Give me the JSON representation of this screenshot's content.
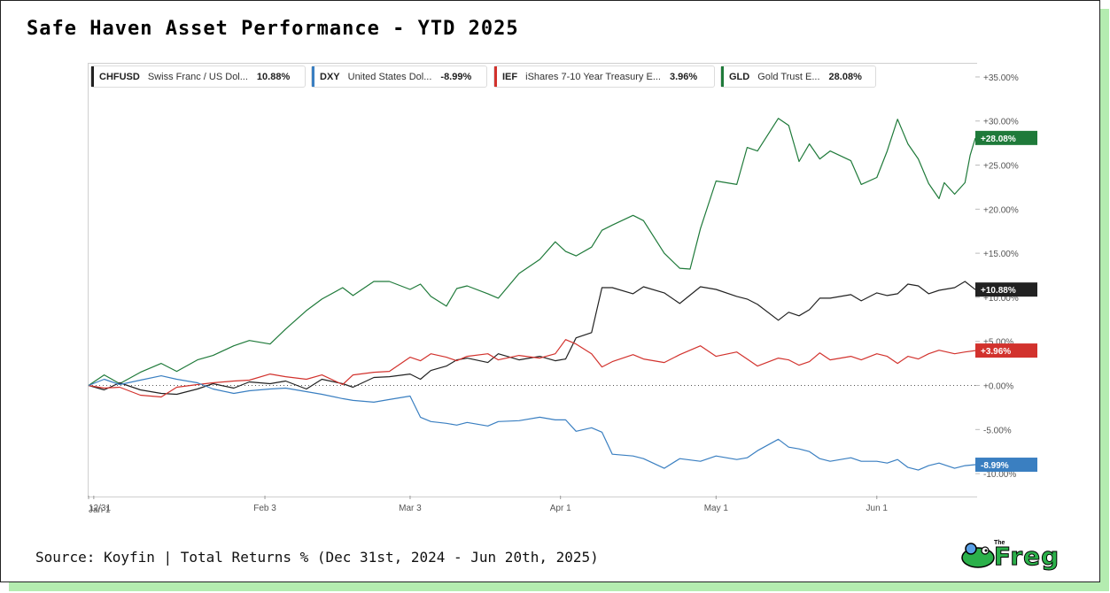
{
  "title": "Safe Haven Asset Performance - YTD 2025",
  "source": "Source: Koyfin | Total Returns % (Dec 31st, 2024 - Jun 20th, 2025)",
  "logo": {
    "small": "The",
    "word": "Freg"
  },
  "legend": [
    {
      "ticker": "CHFUSD",
      "name": "Swiss Franc / US Dol...",
      "value": "10.88%",
      "color": "#222222"
    },
    {
      "ticker": "DXY",
      "name": "United States Dol...",
      "value": "-8.99%",
      "color": "#3a7fc1"
    },
    {
      "ticker": "IEF",
      "name": "iShares 7-10 Year Treasury E...",
      "value": "3.96%",
      "color": "#d2322d"
    },
    {
      "ticker": "GLD",
      "name": "Gold Trust E...",
      "value": "28.08%",
      "color": "#1f7a3a"
    }
  ],
  "chart_data": {
    "type": "line",
    "x_start": "Dec 31, 2024",
    "x_end": "Jun 20, 2025",
    "x_ticks": [
      "12/31",
      "Jan 1",
      "Feb 3",
      "Mar 3",
      "Apr 1",
      "May 1",
      "Jun 1"
    ],
    "y_ticks": [
      "+35.00%",
      "+30.00%",
      "+25.00%",
      "+20.00%",
      "+15.00%",
      "+10.00%",
      "+5.00%",
      "+0.00%",
      "-5.00%",
      "-10.00%"
    ],
    "ylim": [
      -12.5,
      36.5
    ],
    "zero_line": true,
    "end_labels": [
      "+28.08%",
      "+10.88%",
      "+3.96%",
      "-8.99%"
    ],
    "series": [
      {
        "name": "GLD",
        "color": "#1f7a3a",
        "points": [
          [
            "2024-12-31",
            0
          ],
          [
            "2025-01-03",
            1.2
          ],
          [
            "2025-01-06",
            0.2
          ],
          [
            "2025-01-10",
            1.5
          ],
          [
            "2025-01-14",
            2.5
          ],
          [
            "2025-01-17",
            1.6
          ],
          [
            "2025-01-21",
            2.9
          ],
          [
            "2025-01-24",
            3.4
          ],
          [
            "2025-01-28",
            4.5
          ],
          [
            "2025-01-31",
            5.1
          ],
          [
            "2025-02-04",
            4.7
          ],
          [
            "2025-02-07",
            6.4
          ],
          [
            "2025-02-11",
            8.5
          ],
          [
            "2025-02-14",
            9.8
          ],
          [
            "2025-02-18",
            11.1
          ],
          [
            "2025-02-20",
            10.2
          ],
          [
            "2025-02-24",
            11.8
          ],
          [
            "2025-02-27",
            11.8
          ],
          [
            "2025-03-03",
            10.9
          ],
          [
            "2025-03-05",
            11.5
          ],
          [
            "2025-03-07",
            10.1
          ],
          [
            "2025-03-10",
            9.0
          ],
          [
            "2025-03-12",
            11.0
          ],
          [
            "2025-03-14",
            11.3
          ],
          [
            "2025-03-18",
            10.4
          ],
          [
            "2025-03-20",
            9.9
          ],
          [
            "2025-03-24",
            12.7
          ],
          [
            "2025-03-28",
            14.3
          ],
          [
            "2025-03-31",
            16.3
          ],
          [
            "2025-04-02",
            15.2
          ],
          [
            "2025-04-04",
            14.7
          ],
          [
            "2025-04-07",
            15.7
          ],
          [
            "2025-04-09",
            17.6
          ],
          [
            "2025-04-11",
            18.2
          ],
          [
            "2025-04-15",
            19.3
          ],
          [
            "2025-04-17",
            18.7
          ],
          [
            "2025-04-21",
            15.0
          ],
          [
            "2025-04-24",
            13.3
          ],
          [
            "2025-04-26",
            13.2
          ],
          [
            "2025-04-28",
            17.8
          ],
          [
            "2025-05-01",
            23.2
          ],
          [
            "2025-05-05",
            22.8
          ],
          [
            "2025-05-07",
            27.0
          ],
          [
            "2025-05-09",
            26.6
          ],
          [
            "2025-05-13",
            30.3
          ],
          [
            "2025-05-15",
            29.5
          ],
          [
            "2025-05-17",
            25.4
          ],
          [
            "2025-05-19",
            27.4
          ],
          [
            "2025-05-21",
            25.7
          ],
          [
            "2025-05-23",
            26.6
          ],
          [
            "2025-05-27",
            25.5
          ],
          [
            "2025-05-29",
            22.8
          ],
          [
            "2025-06-01",
            23.6
          ],
          [
            "2025-06-03",
            26.6
          ],
          [
            "2025-06-05",
            30.2
          ],
          [
            "2025-06-07",
            27.4
          ],
          [
            "2025-06-09",
            25.7
          ],
          [
            "2025-06-11",
            22.9
          ],
          [
            "2025-06-13",
            21.2
          ],
          [
            "2025-06-14",
            23.0
          ],
          [
            "2025-06-16",
            21.7
          ],
          [
            "2025-06-18",
            23.0
          ],
          [
            "2025-06-19",
            26.1
          ],
          [
            "2025-06-20",
            28.08
          ]
        ]
      },
      {
        "name": "CHFUSD",
        "color": "#222222",
        "points": [
          [
            "2024-12-31",
            0
          ],
          [
            "2025-01-03",
            -0.5
          ],
          [
            "2025-01-06",
            0.3
          ],
          [
            "2025-01-10",
            -0.5
          ],
          [
            "2025-01-14",
            -0.9
          ],
          [
            "2025-01-17",
            -1.0
          ],
          [
            "2025-01-21",
            -0.4
          ],
          [
            "2025-01-24",
            0.2
          ],
          [
            "2025-01-28",
            -0.3
          ],
          [
            "2025-01-31",
            0.4
          ],
          [
            "2025-02-04",
            0.2
          ],
          [
            "2025-02-07",
            0.5
          ],
          [
            "2025-02-11",
            -0.4
          ],
          [
            "2025-02-14",
            0.7
          ],
          [
            "2025-02-18",
            0.2
          ],
          [
            "2025-02-20",
            -0.2
          ],
          [
            "2025-02-24",
            0.9
          ],
          [
            "2025-02-27",
            1.0
          ],
          [
            "2025-03-03",
            1.3
          ],
          [
            "2025-03-05",
            0.7
          ],
          [
            "2025-03-07",
            1.7
          ],
          [
            "2025-03-10",
            2.2
          ],
          [
            "2025-03-12",
            2.9
          ],
          [
            "2025-03-14",
            3.1
          ],
          [
            "2025-03-18",
            2.6
          ],
          [
            "2025-03-20",
            3.6
          ],
          [
            "2025-03-24",
            2.9
          ],
          [
            "2025-03-28",
            3.3
          ],
          [
            "2025-03-31",
            2.8
          ],
          [
            "2025-04-02",
            3.0
          ],
          [
            "2025-04-04",
            5.4
          ],
          [
            "2025-04-07",
            6.0
          ],
          [
            "2025-04-09",
            11.1
          ],
          [
            "2025-04-11",
            11.1
          ],
          [
            "2025-04-15",
            10.4
          ],
          [
            "2025-04-17",
            11.2
          ],
          [
            "2025-04-21",
            10.5
          ],
          [
            "2025-04-24",
            9.3
          ],
          [
            "2025-04-28",
            11.2
          ],
          [
            "2025-05-01",
            10.9
          ],
          [
            "2025-05-05",
            10.1
          ],
          [
            "2025-05-07",
            9.8
          ],
          [
            "2025-05-09",
            9.2
          ],
          [
            "2025-05-13",
            7.4
          ],
          [
            "2025-05-15",
            8.3
          ],
          [
            "2025-05-17",
            7.9
          ],
          [
            "2025-05-19",
            8.6
          ],
          [
            "2025-05-21",
            9.9
          ],
          [
            "2025-05-23",
            9.9
          ],
          [
            "2025-05-27",
            10.3
          ],
          [
            "2025-05-29",
            9.6
          ],
          [
            "2025-06-01",
            10.5
          ],
          [
            "2025-06-03",
            10.2
          ],
          [
            "2025-06-05",
            10.4
          ],
          [
            "2025-06-07",
            11.5
          ],
          [
            "2025-06-09",
            11.3
          ],
          [
            "2025-06-11",
            10.4
          ],
          [
            "2025-06-13",
            10.8
          ],
          [
            "2025-06-16",
            11.1
          ],
          [
            "2025-06-18",
            11.8
          ],
          [
            "2025-06-20",
            10.88
          ]
        ]
      },
      {
        "name": "IEF",
        "color": "#d2322d",
        "points": [
          [
            "2024-12-31",
            0
          ],
          [
            "2025-01-03",
            -0.3
          ],
          [
            "2025-01-06",
            -0.2
          ],
          [
            "2025-01-10",
            -1.1
          ],
          [
            "2025-01-14",
            -1.3
          ],
          [
            "2025-01-17",
            -0.2
          ],
          [
            "2025-01-21",
            0.1
          ],
          [
            "2025-01-24",
            0.3
          ],
          [
            "2025-01-28",
            0.5
          ],
          [
            "2025-01-31",
            0.6
          ],
          [
            "2025-02-04",
            1.3
          ],
          [
            "2025-02-07",
            1.0
          ],
          [
            "2025-02-11",
            0.7
          ],
          [
            "2025-02-14",
            1.2
          ],
          [
            "2025-02-18",
            0.1
          ],
          [
            "2025-02-20",
            1.2
          ],
          [
            "2025-02-24",
            1.5
          ],
          [
            "2025-02-27",
            1.6
          ],
          [
            "2025-03-03",
            3.2
          ],
          [
            "2025-03-05",
            2.8
          ],
          [
            "2025-03-07",
            3.6
          ],
          [
            "2025-03-10",
            3.2
          ],
          [
            "2025-03-12",
            2.8
          ],
          [
            "2025-03-14",
            3.3
          ],
          [
            "2025-03-18",
            3.6
          ],
          [
            "2025-03-20",
            2.9
          ],
          [
            "2025-03-24",
            3.4
          ],
          [
            "2025-03-28",
            3.1
          ],
          [
            "2025-03-31",
            3.6
          ],
          [
            "2025-04-02",
            5.2
          ],
          [
            "2025-04-04",
            4.7
          ],
          [
            "2025-04-07",
            3.6
          ],
          [
            "2025-04-09",
            2.1
          ],
          [
            "2025-04-11",
            2.7
          ],
          [
            "2025-04-15",
            3.5
          ],
          [
            "2025-04-17",
            3.0
          ],
          [
            "2025-04-21",
            2.6
          ],
          [
            "2025-04-24",
            3.5
          ],
          [
            "2025-04-28",
            4.5
          ],
          [
            "2025-05-01",
            3.3
          ],
          [
            "2025-05-05",
            3.8
          ],
          [
            "2025-05-07",
            3.0
          ],
          [
            "2025-05-09",
            2.2
          ],
          [
            "2025-05-13",
            3.1
          ],
          [
            "2025-05-15",
            2.9
          ],
          [
            "2025-05-17",
            2.3
          ],
          [
            "2025-05-19",
            2.7
          ],
          [
            "2025-05-21",
            3.7
          ],
          [
            "2025-05-23",
            2.9
          ],
          [
            "2025-05-27",
            3.3
          ],
          [
            "2025-05-29",
            2.9
          ],
          [
            "2025-06-01",
            3.6
          ],
          [
            "2025-06-03",
            3.3
          ],
          [
            "2025-06-05",
            2.5
          ],
          [
            "2025-06-07",
            3.3
          ],
          [
            "2025-06-09",
            3.0
          ],
          [
            "2025-06-11",
            3.6
          ],
          [
            "2025-06-13",
            4.0
          ],
          [
            "2025-06-16",
            3.6
          ],
          [
            "2025-06-18",
            3.8
          ],
          [
            "2025-06-20",
            3.96
          ]
        ]
      },
      {
        "name": "DXY",
        "color": "#3a7fc1",
        "points": [
          [
            "2024-12-31",
            0
          ],
          [
            "2025-01-03",
            0.7
          ],
          [
            "2025-01-06",
            0.1
          ],
          [
            "2025-01-10",
            0.6
          ],
          [
            "2025-01-14",
            1.1
          ],
          [
            "2025-01-17",
            0.7
          ],
          [
            "2025-01-21",
            0.3
          ],
          [
            "2025-01-24",
            -0.4
          ],
          [
            "2025-01-28",
            -0.9
          ],
          [
            "2025-01-31",
            -0.6
          ],
          [
            "2025-02-04",
            -0.4
          ],
          [
            "2025-02-07",
            -0.3
          ],
          [
            "2025-02-11",
            -0.7
          ],
          [
            "2025-02-14",
            -1.0
          ],
          [
            "2025-02-18",
            -1.5
          ],
          [
            "2025-02-20",
            -1.7
          ],
          [
            "2025-02-24",
            -1.9
          ],
          [
            "2025-02-27",
            -1.6
          ],
          [
            "2025-03-03",
            -1.2
          ],
          [
            "2025-03-05",
            -3.6
          ],
          [
            "2025-03-07",
            -4.1
          ],
          [
            "2025-03-10",
            -4.3
          ],
          [
            "2025-03-12",
            -4.5
          ],
          [
            "2025-03-14",
            -4.2
          ],
          [
            "2025-03-18",
            -4.6
          ],
          [
            "2025-03-20",
            -4.1
          ],
          [
            "2025-03-24",
            -4.0
          ],
          [
            "2025-03-28",
            -3.6
          ],
          [
            "2025-03-31",
            -3.9
          ],
          [
            "2025-04-02",
            -3.9
          ],
          [
            "2025-04-04",
            -5.2
          ],
          [
            "2025-04-07",
            -4.8
          ],
          [
            "2025-04-09",
            -5.3
          ],
          [
            "2025-04-11",
            -7.8
          ],
          [
            "2025-04-15",
            -8.0
          ],
          [
            "2025-04-17",
            -8.3
          ],
          [
            "2025-04-21",
            -9.4
          ],
          [
            "2025-04-24",
            -8.3
          ],
          [
            "2025-04-28",
            -8.6
          ],
          [
            "2025-05-01",
            -8.0
          ],
          [
            "2025-05-05",
            -8.4
          ],
          [
            "2025-05-07",
            -8.2
          ],
          [
            "2025-05-09",
            -7.4
          ],
          [
            "2025-05-13",
            -6.1
          ],
          [
            "2025-05-15",
            -7.0
          ],
          [
            "2025-05-17",
            -7.2
          ],
          [
            "2025-05-19",
            -7.5
          ],
          [
            "2025-05-21",
            -8.3
          ],
          [
            "2025-05-23",
            -8.6
          ],
          [
            "2025-05-27",
            -8.2
          ],
          [
            "2025-05-29",
            -8.6
          ],
          [
            "2025-06-01",
            -8.6
          ],
          [
            "2025-06-03",
            -8.8
          ],
          [
            "2025-06-05",
            -8.4
          ],
          [
            "2025-06-07",
            -9.3
          ],
          [
            "2025-06-09",
            -9.6
          ],
          [
            "2025-06-11",
            -9.1
          ],
          [
            "2025-06-13",
            -8.8
          ],
          [
            "2025-06-16",
            -9.4
          ],
          [
            "2025-06-18",
            -9.1
          ],
          [
            "2025-06-20",
            -8.99
          ]
        ]
      }
    ]
  }
}
